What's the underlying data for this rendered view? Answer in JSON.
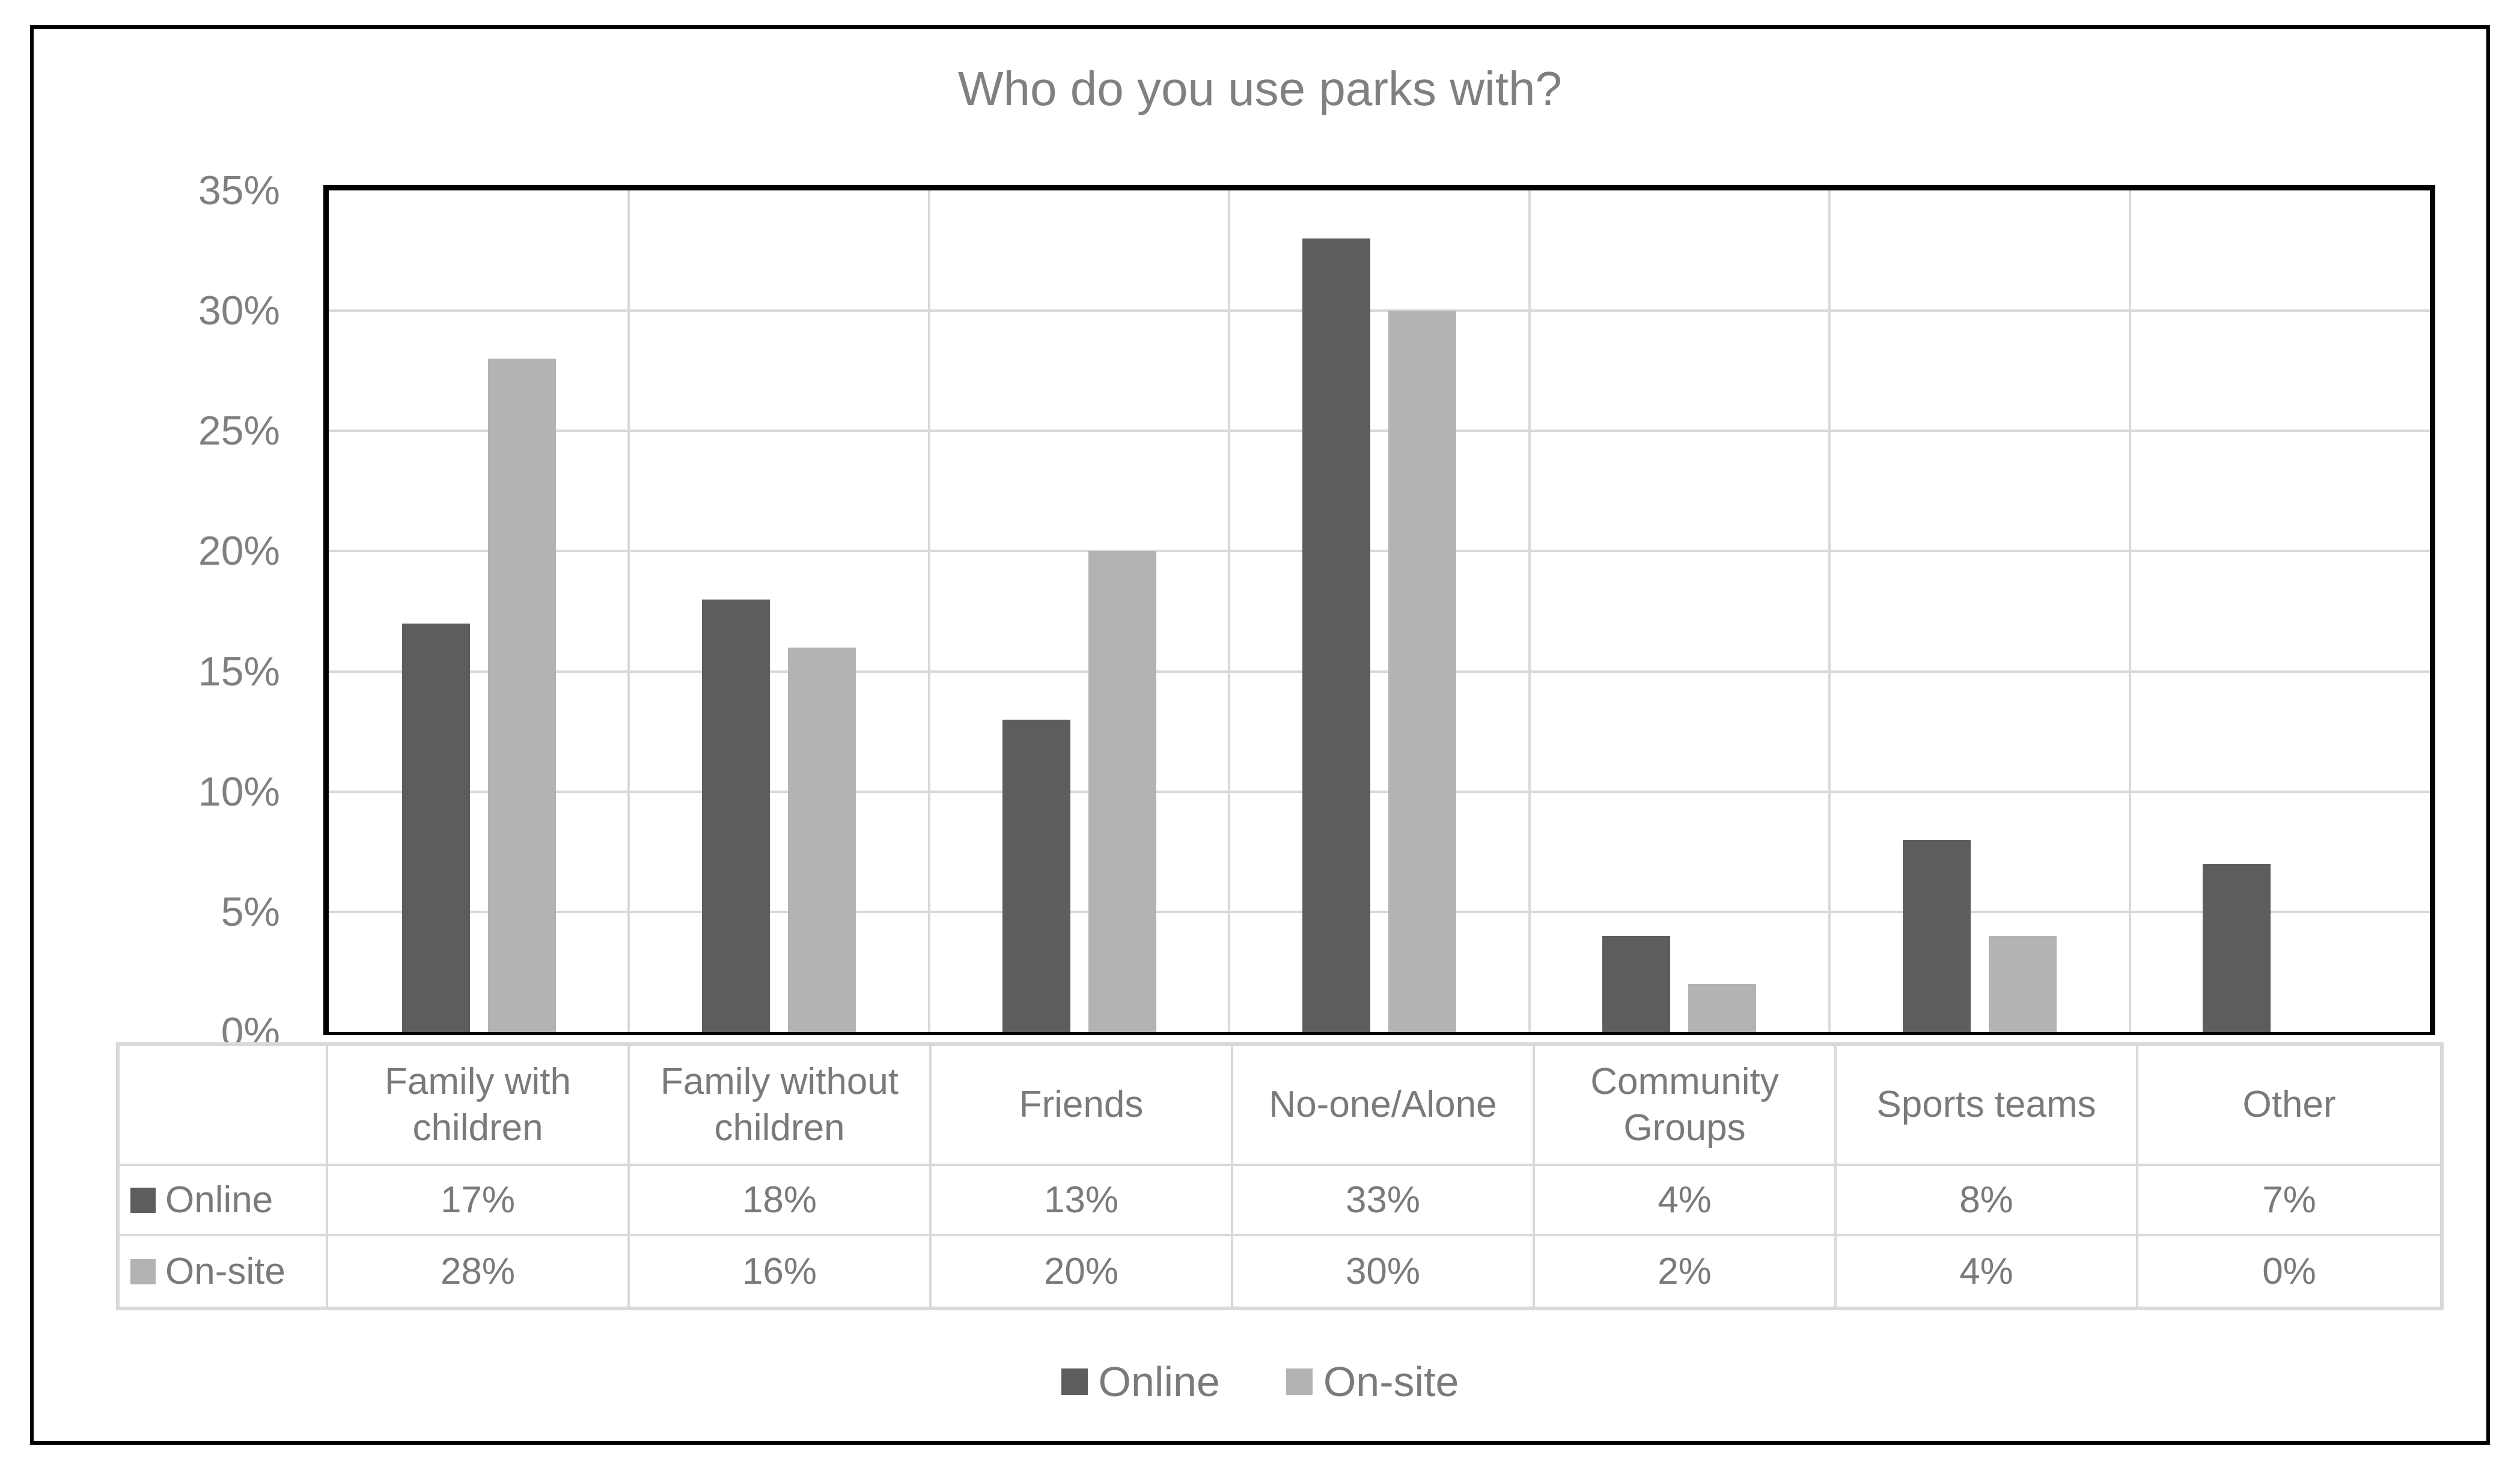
{
  "chart_data": {
    "type": "bar",
    "title": "Who do you use parks with?",
    "categories": [
      "Family with children",
      "Family without children",
      "Friends",
      "No-one/Alone",
      "Community Groups",
      "Sports teams",
      "Other"
    ],
    "series": [
      {
        "name": "Online",
        "color": "#5d5d5d",
        "values": [
          17,
          18,
          13,
          33,
          4,
          8,
          7
        ]
      },
      {
        "name": "On-site",
        "color": "#b3b3b3",
        "values": [
          28,
          16,
          20,
          30,
          2,
          4,
          0
        ]
      }
    ],
    "xlabel": "",
    "ylabel": "",
    "ylim": [
      0,
      35
    ],
    "y_tick_step": 5,
    "y_ticks": [
      "0%",
      "5%",
      "10%",
      "15%",
      "20%",
      "25%",
      "30%",
      "35%"
    ],
    "value_suffix": "%",
    "grid": true,
    "has_data_table": true,
    "legend_position": "bottom",
    "colors": {
      "gridline": "#d9d9d9",
      "table_border": "#d9d9d9",
      "axis_text": "#808080",
      "table_text": "#7a7a7a",
      "title_text": "#808080",
      "plot_border": "#000000",
      "outer_frame": "#000000"
    }
  }
}
